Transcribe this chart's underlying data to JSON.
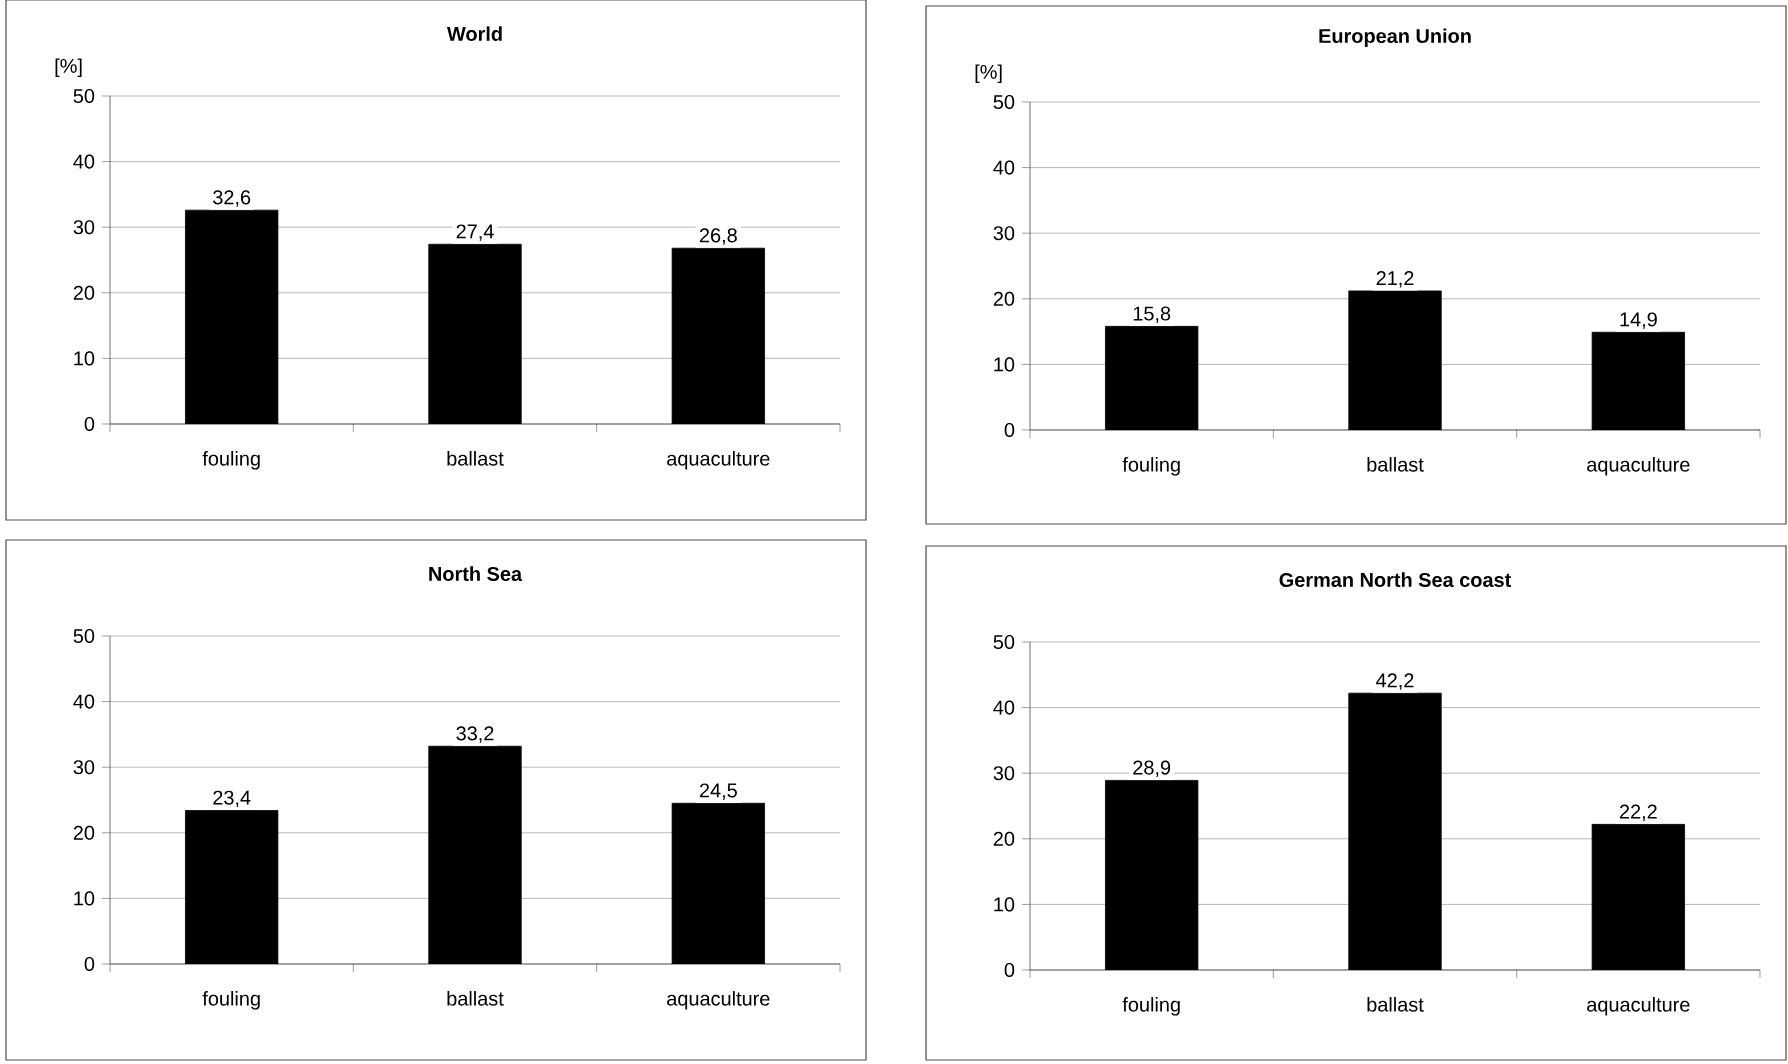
{
  "chart_data": [
    {
      "type": "bar",
      "title": "World",
      "ylabel": "[%]",
      "categories": [
        "fouling",
        "ballast",
        "aquaculture"
      ],
      "values": [
        32.6,
        27.4,
        26.8
      ],
      "value_labels": [
        "32,6",
        "27,4",
        "26,8"
      ],
      "color": "#000000",
      "ylim": [
        0,
        50
      ],
      "yticks": [
        0,
        10,
        20,
        30,
        40,
        50
      ],
      "grid": "y"
    },
    {
      "type": "bar",
      "title": "European Union",
      "ylabel": "[%]",
      "categories": [
        "fouling",
        "ballast",
        "aquaculture"
      ],
      "values": [
        15.8,
        21.2,
        14.9
      ],
      "value_labels": [
        "15,8",
        "21,2",
        "14,9"
      ],
      "color": "#000000",
      "ylim": [
        0,
        50
      ],
      "yticks": [
        0,
        10,
        20,
        30,
        40,
        50
      ],
      "grid": "y"
    },
    {
      "type": "bar",
      "title": "North Sea",
      "categories": [
        "fouling",
        "ballast",
        "aquaculture"
      ],
      "values": [
        23.4,
        33.2,
        24.5
      ],
      "value_labels": [
        "23,4",
        "33,2",
        "24,5"
      ],
      "color": "#000000",
      "ylim": [
        0,
        50
      ],
      "yticks": [
        0,
        10,
        20,
        30,
        40,
        50
      ],
      "grid": "y"
    },
    {
      "type": "bar",
      "title": "German North Sea coast",
      "categories": [
        "fouling",
        "ballast",
        "aquaculture"
      ],
      "values": [
        28.9,
        42.2,
        22.2
      ],
      "value_labels": [
        "28,9",
        "42,2",
        "22,2"
      ],
      "color": "#000000",
      "ylim": [
        0,
        50
      ],
      "yticks": [
        0,
        10,
        20,
        30,
        40,
        50
      ],
      "grid": "y"
    }
  ]
}
